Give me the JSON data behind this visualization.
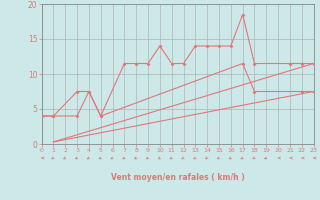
{
  "bg_color": "#cde8e8",
  "grid_color": "#aaaaaa",
  "line_color": "#e07878",
  "xlabel": "Vent moyen/en rafales ( km/h )",
  "xlim": [
    0,
    23
  ],
  "ylim": [
    0,
    20
  ],
  "yticks": [
    0,
    5,
    10,
    15,
    20
  ],
  "xticks": [
    0,
    1,
    2,
    3,
    4,
    5,
    6,
    7,
    8,
    9,
    10,
    11,
    12,
    13,
    14,
    15,
    16,
    17,
    18,
    19,
    20,
    21,
    22,
    23
  ],
  "line1_x": [
    0,
    1,
    3,
    4,
    5,
    7,
    8,
    9,
    10,
    11,
    12,
    13,
    14,
    15,
    16,
    17,
    18,
    21,
    22,
    23
  ],
  "line1_y": [
    4,
    4,
    4,
    7.5,
    4,
    11.5,
    11.5,
    11.5,
    14,
    11.5,
    11.5,
    14,
    14,
    14,
    14,
    18.5,
    11.5,
    11.5,
    11.5,
    11.5
  ],
  "line2_x": [
    0,
    1,
    3,
    4,
    5,
    17,
    18,
    22,
    23
  ],
  "line2_y": [
    4,
    4,
    7.5,
    7.5,
    4,
    11.5,
    7.5,
    7.5,
    7.5
  ],
  "trend1_x": [
    1,
    23
  ],
  "trend1_y": [
    0.3,
    7.5
  ],
  "trend2_x": [
    1,
    23
  ],
  "trend2_y": [
    0.3,
    11.5
  ],
  "arrows_x": [
    0,
    1,
    2,
    3,
    4,
    5,
    6,
    7,
    8,
    9,
    10,
    11,
    12,
    13,
    14,
    15,
    16,
    17,
    18,
    19,
    20,
    21,
    22,
    23
  ],
  "arrow_angles_deg": [
    270,
    225,
    225,
    225,
    225,
    225,
    225,
    225,
    225,
    225,
    225,
    225,
    225,
    225,
    225,
    225,
    225,
    225,
    225,
    225,
    270,
    270,
    270,
    270
  ]
}
